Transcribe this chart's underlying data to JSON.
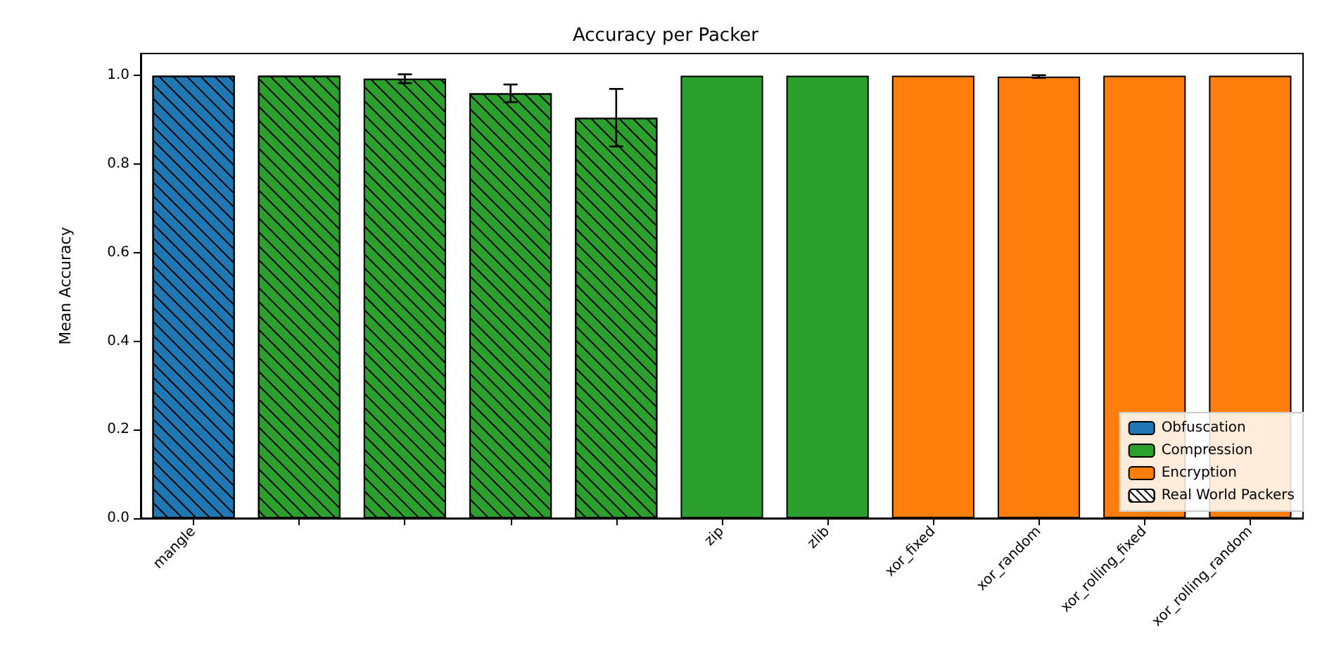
{
  "chart_data": {
    "type": "bar",
    "title": "Accuracy per Packer",
    "ylabel": "Mean Accuracy",
    "categories": [
      "mangle",
      null,
      null,
      null,
      null,
      "zip",
      "zlib",
      "xor_fixed",
      "xor_random",
      "xor_rolling_fixed",
      "xor_rolling_random"
    ],
    "series": [
      {
        "name": "Obfuscation",
        "color": "#1f77b4",
        "values": [
          null,
          null,
          null,
          null,
          null,
          null,
          null,
          null,
          null,
          null,
          null
        ]
      },
      {
        "name": "Compression",
        "color": "#2ca02c",
        "values": [
          null,
          null,
          null,
          null,
          null,
          1.0,
          1.0,
          null,
          null,
          null,
          null
        ]
      },
      {
        "name": "Encryption",
        "color": "#ff7f0e",
        "values": [
          null,
          null,
          null,
          null,
          null,
          null,
          null,
          1.0,
          0.998,
          1.0,
          1.0
        ],
        "errors": [
          null,
          null,
          null,
          null,
          null,
          null,
          null,
          null,
          0.003,
          null,
          null
        ]
      },
      {
        "name": "Real World Packers",
        "color": "#ffffff",
        "colors": [
          "#1f77b4",
          "#2ca02c",
          "#2ca02c",
          "#2ca02c",
          "#2ca02c",
          null,
          null,
          null,
          null,
          null,
          null
        ],
        "values": [
          1.0,
          1.0,
          0.993,
          0.96,
          0.905,
          null,
          null,
          null,
          null,
          null,
          null
        ],
        "errors": [
          null,
          null,
          0.01,
          0.02,
          0.065,
          null,
          null,
          null,
          null,
          null,
          null
        ]
      }
    ],
    "ylim": [
      0,
      1.05
    ],
    "yticks": [
      {
        "value": 0,
        "label": "0.0"
      },
      0.2,
      0.4,
      0.6,
      0.8,
      {
        "value": 1,
        "label": "1.0"
      }
    ],
    "grid": false,
    "legend": "bottom right"
  }
}
